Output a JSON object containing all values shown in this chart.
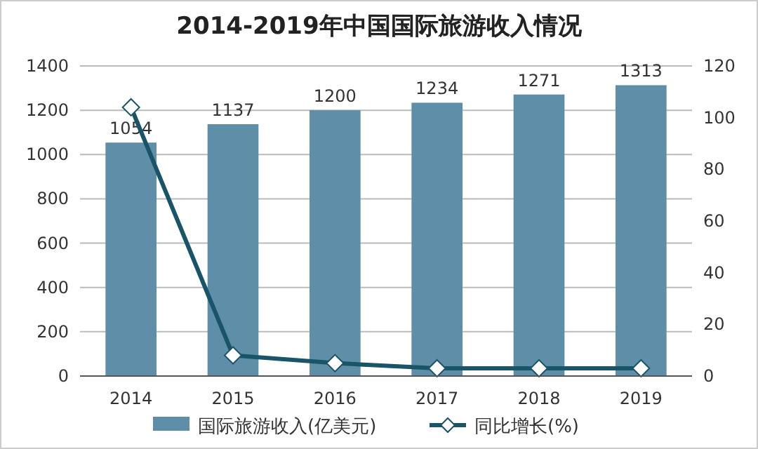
{
  "chart_data": {
    "type": "bar",
    "title": "2014-2019年中国国际旅游收入情况",
    "categories": [
      "2014",
      "2015",
      "2016",
      "2017",
      "2018",
      "2019"
    ],
    "series": [
      {
        "name": "国际旅游收入(亿美元)",
        "color": "#5f8fa8",
        "values": [
          1054,
          1137,
          1200,
          1234,
          1271,
          1313
        ],
        "value_labels": [
          "1054",
          "1137",
          "1200",
          "1234",
          "1271",
          "1313"
        ]
      },
      {
        "name": "同比增长(%)",
        "type": "line",
        "axis": "y2",
        "color": "#1a5468",
        "marker": "diamond",
        "values": [
          104,
          8,
          5,
          3,
          3,
          3
        ]
      }
    ],
    "ylim": [
      0,
      1400
    ],
    "yticks": [
      0,
      200,
      400,
      600,
      800,
      1000,
      1200,
      1400
    ],
    "y2lim": [
      0,
      120
    ],
    "y2ticks": [
      0,
      20,
      40,
      60,
      80,
      100,
      120
    ],
    "grid": "y",
    "legend": "bottom"
  }
}
